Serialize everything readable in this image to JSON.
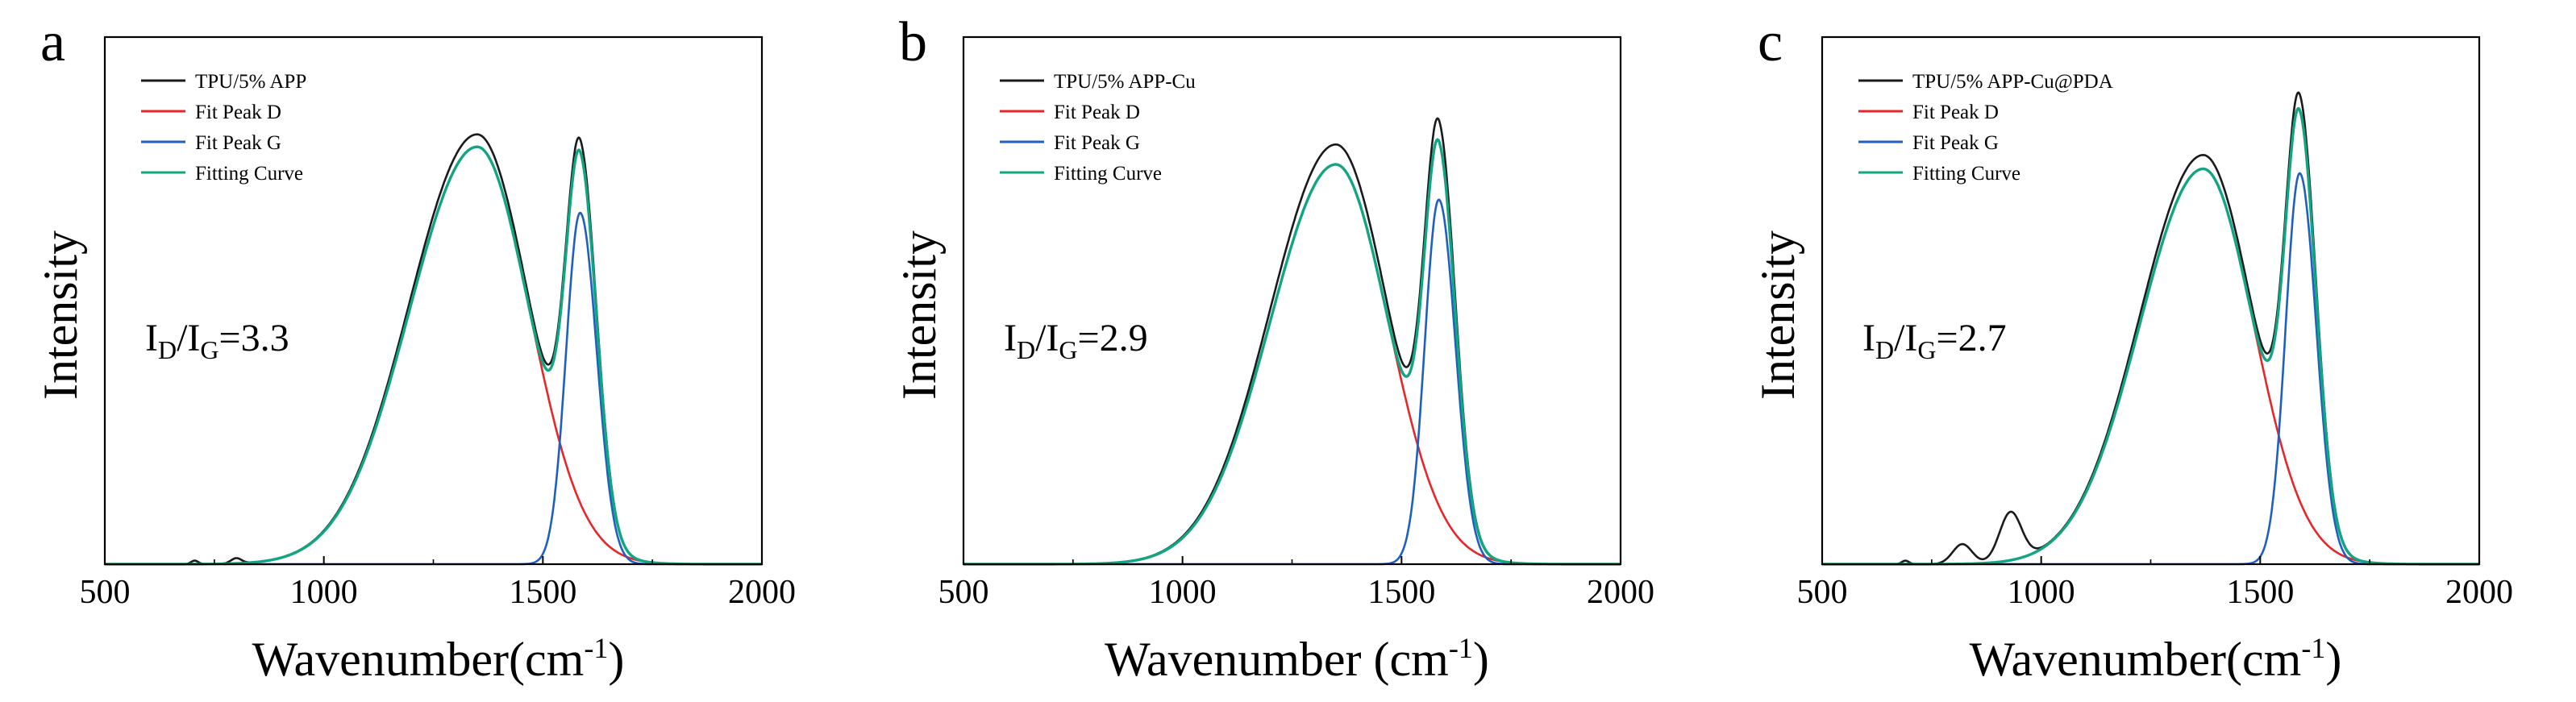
{
  "figure": {
    "palette": {
      "sample": "#1a1a1a",
      "peak_d": "#e8262a",
      "peak_g": "#1f5fc0",
      "fitting": "#12a582",
      "axis": "#000000"
    }
  },
  "chart_data": [
    {
      "type": "line",
      "panel": "a",
      "xlabel": "Wavenumber(cm",
      "xlabel_sup": "-1",
      "xlabel_end": ")",
      "ylabel": "Intensity",
      "xlim": [
        500,
        2000
      ],
      "ylim": [
        0,
        1.2
      ],
      "x_ticks": [
        500,
        1000,
        1500,
        2000
      ],
      "y_ticks_labeled": false,
      "legend_position": "top-left",
      "annotation": {
        "prefix": "I",
        "sub1": "D",
        "mid": "/I",
        "sub2": "G",
        "value": "=3.3"
      },
      "series": [
        {
          "name": "TPU/5% APP",
          "color": "#1a1a1a",
          "model": {
            "kind": "sample"
          }
        },
        {
          "name": "Fit Peak D",
          "color": "#e8262a",
          "model": {
            "kind": "gaussian",
            "amplitude": 0.95,
            "center": 1350,
            "sigma_left": 155,
            "sigma_right": 120
          }
        },
        {
          "name": "Fit Peak G",
          "color": "#1f5fc0",
          "model": {
            "kind": "gaussian",
            "amplitude": 0.8,
            "center": 1585,
            "sigma_left": 32,
            "sigma_right": 38
          }
        },
        {
          "name": "Fitting Curve",
          "color": "#12a582",
          "model": {
            "kind": "sum"
          }
        }
      ],
      "sample_features": {
        "scale": 1.03,
        "bumps": [
          {
            "center": 705,
            "amplitude": 0.008,
            "sigma": 8
          },
          {
            "center": 800,
            "amplitude": 0.012,
            "sigma": 12
          }
        ],
        "cutoff": 1800
      }
    },
    {
      "type": "line",
      "panel": "b",
      "xlabel": "Wavenumber (cm",
      "xlabel_sup": "-1",
      "xlabel_end": ")",
      "ylabel": "Intensity",
      "xlim": [
        500,
        2000
      ],
      "ylim": [
        0,
        1.2
      ],
      "x_ticks": [
        500,
        1000,
        1500,
        2000
      ],
      "y_ticks_labeled": false,
      "legend_position": "top-left",
      "annotation": {
        "prefix": "I",
        "sub1": "D",
        "mid": "/I",
        "sub2": "G",
        "value": "=2.9"
      },
      "series": [
        {
          "name": "TPU/5% APP-Cu",
          "color": "#1a1a1a",
          "model": {
            "kind": "sample"
          }
        },
        {
          "name": "Fit Peak D",
          "color": "#e8262a",
          "model": {
            "kind": "gaussian",
            "amplitude": 0.91,
            "center": 1350,
            "sigma_left": 150,
            "sigma_right": 120
          }
        },
        {
          "name": "Fit Peak G",
          "color": "#1f5fc0",
          "model": {
            "kind": "gaussian",
            "amplitude": 0.83,
            "center": 1585,
            "sigma_left": 32,
            "sigma_right": 38
          }
        },
        {
          "name": "Fitting Curve",
          "color": "#12a582",
          "model": {
            "kind": "sum"
          }
        }
      ],
      "sample_features": {
        "scale": 1.05,
        "bumps": [],
        "cutoff": 1800
      }
    },
    {
      "type": "line",
      "panel": "c",
      "xlabel": "Wavenumber(cm",
      "xlabel_sup": "-1",
      "xlabel_end": ")",
      "ylabel": "Intensity",
      "xlim": [
        500,
        2000
      ],
      "ylim": [
        0,
        1.2
      ],
      "x_ticks": [
        500,
        1000,
        1500,
        2000
      ],
      "y_ticks_labeled": false,
      "legend_position": "top-left",
      "annotation": {
        "prefix": "I",
        "sub1": "D",
        "mid": "/I",
        "sub2": "G",
        "value": "=2.7"
      },
      "series": [
        {
          "name": "TPU/5% APP-Cu@PDA",
          "color": "#1a1a1a",
          "model": {
            "kind": "sample"
          }
        },
        {
          "name": "Fit Peak D",
          "color": "#e8262a",
          "model": {
            "kind": "gaussian",
            "amplitude": 0.9,
            "center": 1370,
            "sigma_left": 145,
            "sigma_right": 115
          }
        },
        {
          "name": "Fit Peak G",
          "color": "#1f5fc0",
          "model": {
            "kind": "gaussian",
            "amplitude": 0.89,
            "center": 1590,
            "sigma_left": 32,
            "sigma_right": 38
          }
        },
        {
          "name": "Fitting Curve",
          "color": "#12a582",
          "model": {
            "kind": "sum"
          }
        }
      ],
      "sample_features": {
        "scale": 1.035,
        "bumps": [
          {
            "center": 690,
            "amplitude": 0.008,
            "sigma": 8
          },
          {
            "center": 820,
            "amplitude": 0.045,
            "sigma": 22
          },
          {
            "center": 930,
            "amplitude": 0.11,
            "sigma": 25
          }
        ],
        "cutoff": 1780
      }
    }
  ]
}
